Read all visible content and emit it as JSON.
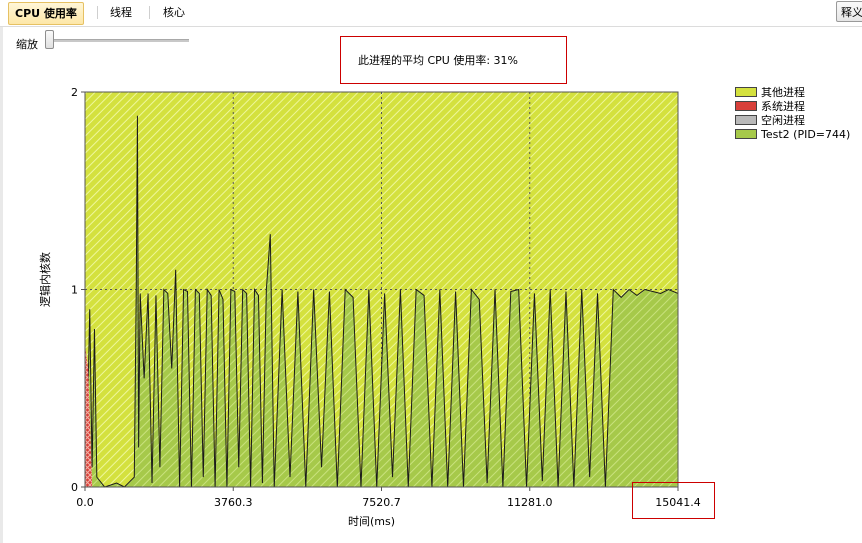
{
  "tabs": [
    {
      "label": "CPU 使用率",
      "active": true
    },
    {
      "label": "线程",
      "active": false
    },
    {
      "label": "核心",
      "active": false
    }
  ],
  "annotate_button": "释义",
  "zoom": {
    "label": "缩放",
    "level": 0
  },
  "summary": {
    "text": "此进程的平均 CPU 使用率: 31%"
  },
  "colors": {
    "other": "#d4e13e",
    "system": "#d8403a",
    "idle": "#b9b9b9",
    "process": "#a6c94a",
    "highlight_box": "#cc0000"
  },
  "legend": [
    {
      "label": "其他进程",
      "color": "#d4e13e",
      "pattern": "hatch-yellow"
    },
    {
      "label": "系统进程",
      "color": "#d8403a",
      "pattern": "crosshatch-red"
    },
    {
      "label": "空闲进程",
      "color": "#b9b9b9",
      "pattern": "solid-gray"
    },
    {
      "label": "Test2 (PID=744)",
      "color": "#a6c94a",
      "pattern": "hatch-green"
    }
  ],
  "chart_data": {
    "type": "area",
    "xlabel": "时间(ms)",
    "ylabel": "逻辑内核数",
    "x_ticks": [
      "0.0",
      "3760.3",
      "7520.7",
      "11281.0",
      "15041.4"
    ],
    "y_ticks": [
      "0",
      "1",
      "2"
    ],
    "xlim": [
      0,
      15041.4
    ],
    "ylim": [
      0,
      2
    ],
    "grid": true,
    "legend_position": "right",
    "series": [
      {
        "name": "Test2 (PID=744)",
        "x": [
          0,
          60,
          120,
          180,
          240,
          300,
          500,
          800,
          1000,
          1150,
          1250,
          1300,
          1330,
          1360,
          1400,
          1500,
          1600,
          1700,
          1800,
          1900,
          2000,
          2100,
          2200,
          2300,
          2400,
          2500,
          2600,
          2700,
          2800,
          2900,
          3000,
          3100,
          3200,
          3300,
          3400,
          3500,
          3600,
          3700,
          3800,
          3900,
          4000,
          4100,
          4200,
          4300,
          4400,
          4500,
          4600,
          4700,
          4800,
          5000,
          5200,
          5400,
          5600,
          5800,
          6000,
          6200,
          6400,
          6600,
          6800,
          7000,
          7200,
          7400,
          7600,
          7800,
          8000,
          8200,
          8400,
          8600,
          8800,
          9000,
          9200,
          9400,
          9600,
          9800,
          10000,
          10200,
          10400,
          10600,
          10800,
          11000,
          11200,
          11400,
          11600,
          11800,
          12000,
          12200,
          12400,
          12600,
          12800,
          13000,
          13200,
          13400,
          13600,
          13800,
          14000,
          14200,
          14400,
          14600,
          14800,
          15041.4
        ],
        "values": [
          0.7,
          0.3,
          0.9,
          0.1,
          0.8,
          0.05,
          0.0,
          0.02,
          0.0,
          0.03,
          0.05,
          1.0,
          1.88,
          0.2,
          0.98,
          0.55,
          0.98,
          0.02,
          0.97,
          0.1,
          1.0,
          0.98,
          0.6,
          1.1,
          0.0,
          1.0,
          0.99,
          0.0,
          1.0,
          0.98,
          0.05,
          1.0,
          0.97,
          0.0,
          1.0,
          0.95,
          0.0,
          1.0,
          0.99,
          0.1,
          1.0,
          0.98,
          0.0,
          1.0,
          0.97,
          0.02,
          1.0,
          1.28,
          0.0,
          1.0,
          0.05,
          0.99,
          0.0,
          1.0,
          0.1,
          0.99,
          0.0,
          1.0,
          0.96,
          0.0,
          1.0,
          0.0,
          0.98,
          0.05,
          1.0,
          0.0,
          1.0,
          0.97,
          0.0,
          1.0,
          0.0,
          0.99,
          0.0,
          1.0,
          0.95,
          0.02,
          1.0,
          0.0,
          0.99,
          1.0,
          0.0,
          0.98,
          0.03,
          1.0,
          0.0,
          0.99,
          0.0,
          1.0,
          0.05,
          0.98,
          0.0,
          1.0,
          0.96,
          1.0,
          0.97,
          1.0,
          0.99,
          0.98,
          1.0,
          0.98
        ]
      }
    ]
  }
}
